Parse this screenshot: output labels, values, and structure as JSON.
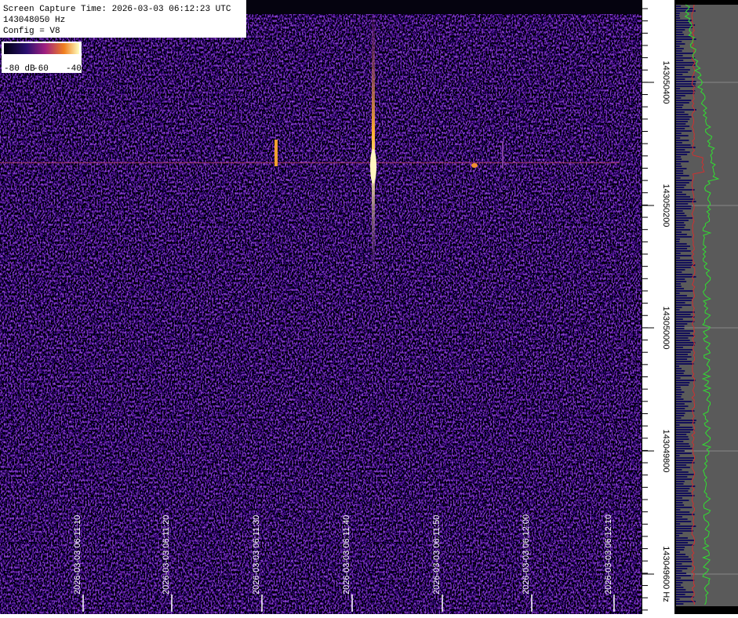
{
  "header": {
    "lines": [
      "Screen Capture Time: 2026-03-03 06:12:23 UTC",
      "143048050 Hz",
      "Config = V8"
    ]
  },
  "colorbar": {
    "labels": [
      "-80 dB",
      "-60",
      "-40"
    ]
  },
  "time_labels": [
    "2026-03-03 06:11:10",
    "2026-03-03 06:11:20",
    "2026-03-03 06:11:30",
    "2026-03-03 06:11:40",
    "2026-03-03 06:11:50",
    "2026-03-03 06:12:00",
    "2026-03-03 06:12:10"
  ],
  "freq_labels": [
    "143050400",
    "143050200",
    "143050000",
    "143049800",
    "143049600 Hz"
  ]
}
